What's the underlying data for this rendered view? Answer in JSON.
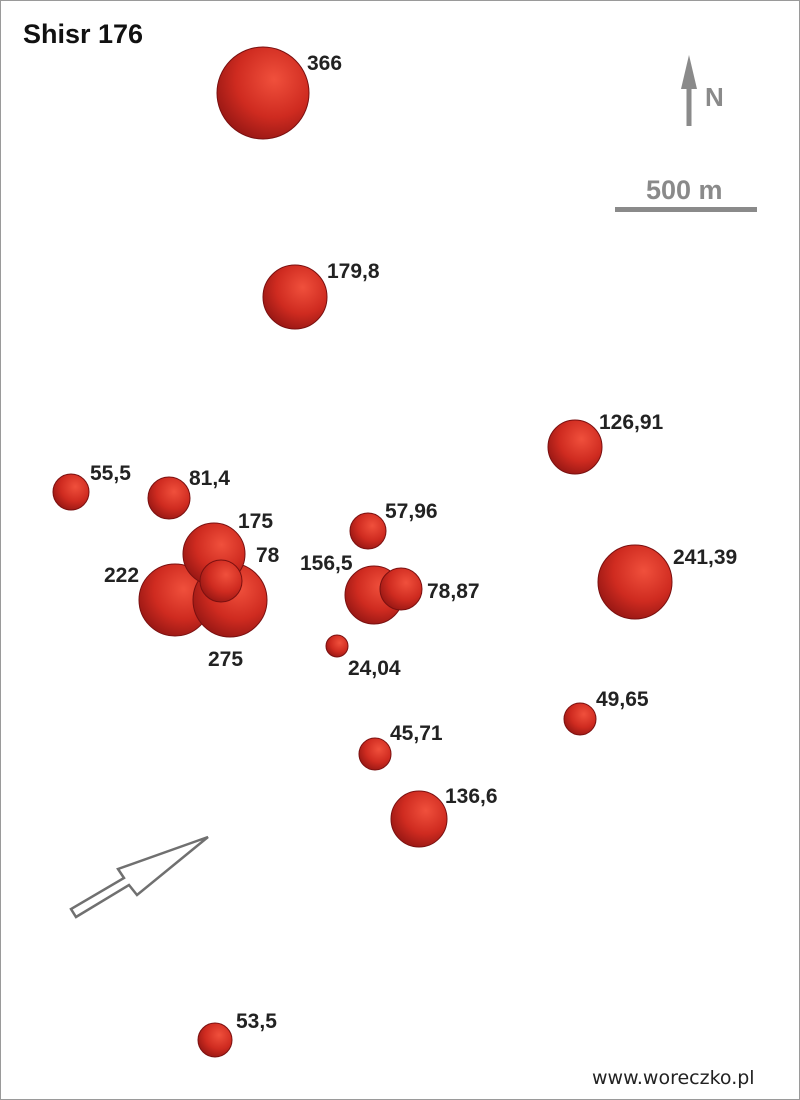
{
  "map": {
    "title": "Shisr 176",
    "north_label": "N",
    "scale_label": "500 m",
    "credit": "www.woreczko.pl",
    "colors": {
      "fragment_light": "#f0503c",
      "fragment_mid": "#cf2b20",
      "fragment_dark": "#8e1412",
      "label": "#222222",
      "gray": "#8a8a8a",
      "frame": "#9a9a9a"
    },
    "icons": [
      "north-arrow-icon",
      "fall-direction-arrow-icon",
      "scale-bar-icon"
    ],
    "fragments": [
      {
        "label": "366"
      },
      {
        "label": "179,8"
      },
      {
        "label": "126,91"
      },
      {
        "label": "55,5"
      },
      {
        "label": "81,4"
      },
      {
        "label": "57,96"
      },
      {
        "label": "241,39"
      },
      {
        "label": "175"
      },
      {
        "label": "222"
      },
      {
        "label": "275"
      },
      {
        "label": "78"
      },
      {
        "label": "156,5"
      },
      {
        "label": "78,87"
      },
      {
        "label": "24,04"
      },
      {
        "label": "49,65"
      },
      {
        "label": "45,71"
      },
      {
        "label": "136,6"
      },
      {
        "label": "53,5"
      }
    ]
  }
}
